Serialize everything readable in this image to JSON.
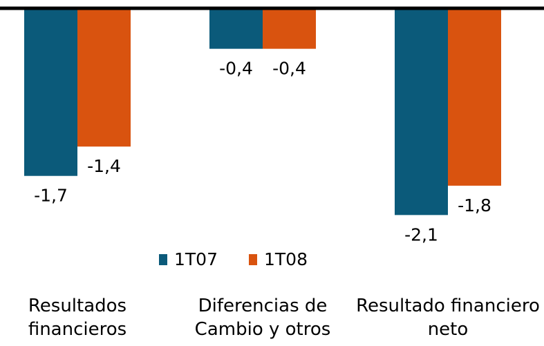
{
  "chart_data": {
    "type": "bar",
    "categories": [
      "Resultados\nfinancieros",
      "Diferencias de\nCambio y otros",
      "Resultado financiero\nneto"
    ],
    "series": [
      {
        "name": "1T07",
        "color": "#0b5a7a",
        "values": [
          -1.7,
          -0.4,
          -2.1
        ],
        "value_labels": [
          "-1,7",
          "-0,4",
          "-2,1"
        ]
      },
      {
        "name": "1T08",
        "color": "#d9530f",
        "values": [
          -1.4,
          -0.4,
          -1.8
        ],
        "value_labels": [
          "-1,4",
          "-0,4",
          "-1,8"
        ]
      }
    ],
    "ylim": [
      -2.5,
      0
    ],
    "grid": false,
    "legend": "bottom"
  }
}
